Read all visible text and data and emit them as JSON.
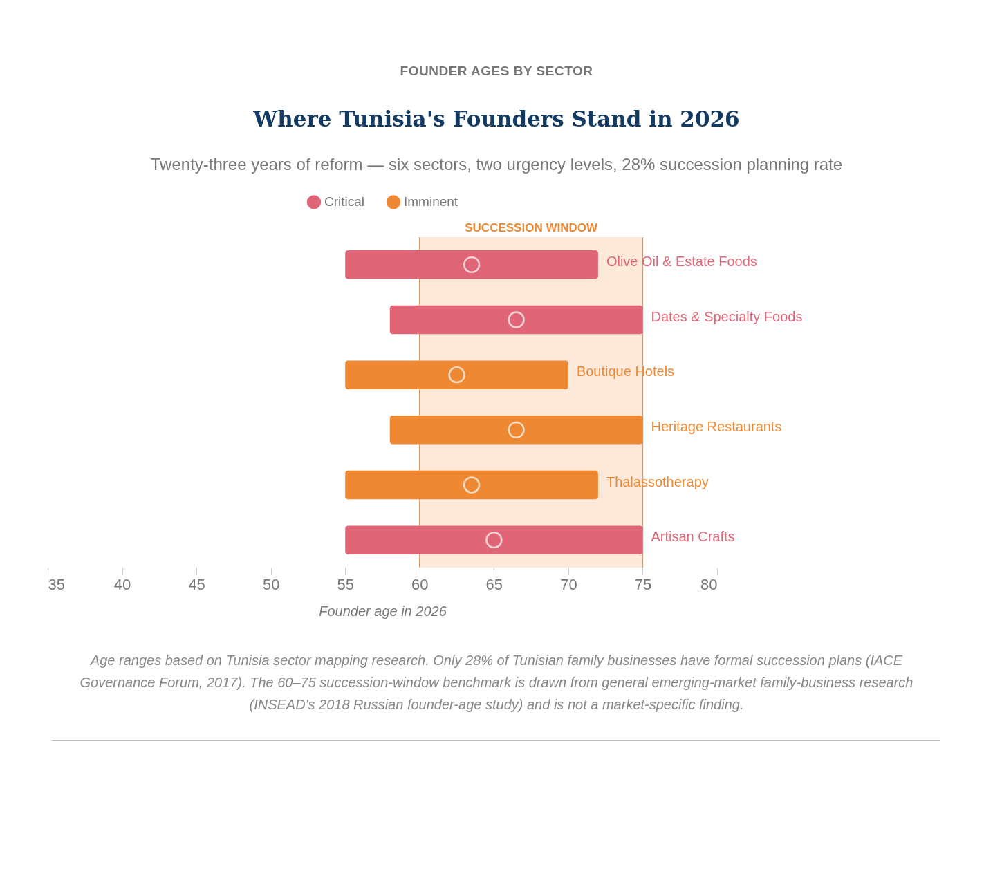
{
  "chart_data": {
    "type": "bar",
    "orientation": "horizontal",
    "title": "Where Tunisia's Founders Stand in 2026",
    "subtitle": "Twenty-three years of reform — six sectors, two urgency levels, 28% succession planning rate",
    "categories": [
      "Olive Oil & Estate Foods",
      "Dates & Specialty Foods",
      "Boutique Hotels",
      "Heritage Restaurants",
      "Thalassotherapy",
      "Artisan Crafts"
    ],
    "series": [
      {
        "name": "Critical",
        "color": "#e06677",
        "base": [
          55,
          58,
          null,
          null,
          null,
          55
        ],
        "values": [
          17,
          17,
          null,
          null,
          null,
          20
        ]
      },
      {
        "name": "Imminent",
        "color": "#ee8833",
        "base": [
          null,
          null,
          55,
          58,
          55,
          null
        ],
        "values": [
          null,
          null,
          15,
          17,
          17,
          null
        ]
      },
      {
        "type": "scatter",
        "color": "#ffffff",
        "marker": "circle",
        "values": [
          63.5,
          66.5,
          62.5,
          66.5,
          63.5,
          65
        ]
      }
    ],
    "xlabel": "Founder age in 2026",
    "xlim": [
      35,
      80
    ],
    "xticks": [
      35,
      40,
      45,
      50,
      55,
      60,
      65,
      70,
      75,
      80
    ],
    "bands": [
      {
        "axis": "x",
        "from": 60,
        "to": 75,
        "label": "SUCCESSION WINDOW",
        "color": "#fce9da"
      }
    ],
    "legend": "top",
    "tick_labels": "x",
    "annotations": [
      "FOUNDER AGES BY SECTOR",
      "Age ranges based on Tunisia sector mapping research. Only 28% of Tunisian family businesses have formal succession plans (IACE Governance Forum, 2017). The 60–75 succession-window benchmark is drawn from general emerging-market family-business research (INSEAD's 2018 Russian founder-age study) and is not a market-specific finding."
    ]
  }
}
